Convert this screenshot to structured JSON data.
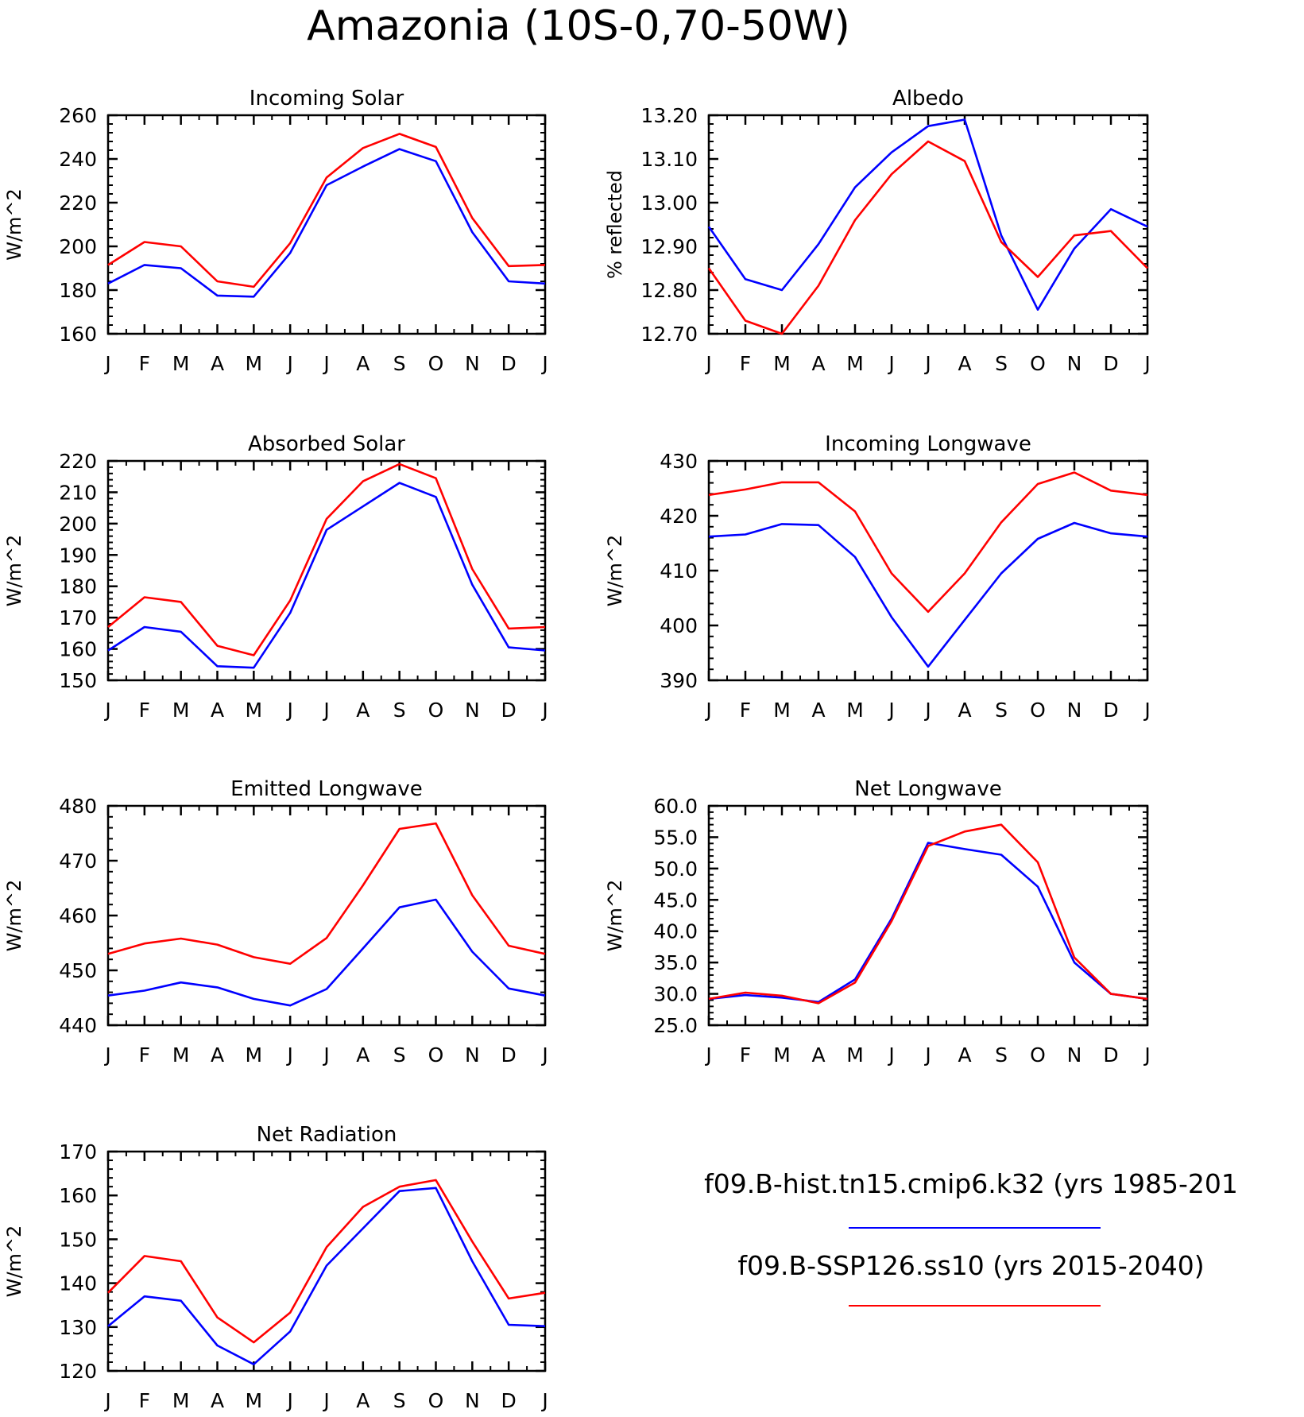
{
  "title": "Amazonia (10S-0,70-50W)",
  "legend": [
    {
      "label": "f09.B-hist.tn15.cmip6.k32 (yrs 1985-201",
      "color": "#0000ff"
    },
    {
      "label": "f09.B-SSP126.ss10 (yrs 2015-2040)",
      "color": "#ff0000"
    }
  ],
  "chart_data": [
    {
      "type": "line",
      "title": "Incoming Solar",
      "ylabel": "W/m^2",
      "ylim": [
        160,
        260
      ],
      "yticks": [
        "160",
        "180",
        "200",
        "220",
        "240",
        "260"
      ],
      "categories": [
        "J",
        "F",
        "M",
        "A",
        "M",
        "J",
        "J",
        "A",
        "S",
        "O",
        "N",
        "D",
        "J"
      ],
      "series": [
        {
          "color": "#0000ff",
          "values": [
            183,
            191.5,
            190,
            177.5,
            177,
            197,
            228,
            236.5,
            244.5,
            239,
            206.5,
            184,
            183
          ]
        },
        {
          "color": "#ff0000",
          "values": [
            191.5,
            202,
            200,
            184,
            181.5,
            201.5,
            231.5,
            245,
            251.5,
            245.5,
            213,
            191,
            191.5
          ]
        }
      ]
    },
    {
      "type": "line",
      "title": "Albedo",
      "ylabel": "% reflected",
      "ylim": [
        12.7,
        13.2
      ],
      "yticks": [
        "12.70",
        "12.80",
        "12.90",
        "13.00",
        "13.10",
        "13.20"
      ],
      "categories": [
        "J",
        "F",
        "M",
        "A",
        "M",
        "J",
        "J",
        "A",
        "S",
        "O",
        "N",
        "D",
        "J"
      ],
      "series": [
        {
          "color": "#0000ff",
          "values": [
            12.945,
            12.825,
            12.8,
            12.905,
            13.035,
            13.115,
            13.175,
            13.19,
            12.925,
            12.755,
            12.895,
            12.985,
            12.945
          ]
        },
        {
          "color": "#ff0000",
          "values": [
            12.85,
            12.73,
            12.7,
            12.81,
            12.96,
            13.065,
            13.14,
            13.095,
            12.91,
            12.83,
            12.925,
            12.935,
            12.85
          ]
        }
      ]
    },
    {
      "type": "line",
      "title": "Absorbed Solar",
      "ylabel": "W/m^2",
      "ylim": [
        150,
        220
      ],
      "yticks": [
        "150",
        "160",
        "170",
        "180",
        "190",
        "200",
        "210",
        "220"
      ],
      "categories": [
        "J",
        "F",
        "M",
        "A",
        "M",
        "J",
        "J",
        "A",
        "S",
        "O",
        "N",
        "D",
        "J"
      ],
      "series": [
        {
          "color": "#0000ff",
          "values": [
            159.5,
            167,
            165.5,
            154.5,
            154,
            171.5,
            198,
            205.5,
            213,
            208.5,
            180.5,
            160.5,
            159.5
          ]
        },
        {
          "color": "#ff0000",
          "values": [
            167,
            176.5,
            175,
            161,
            158,
            175.5,
            201.5,
            213.5,
            219,
            214.5,
            185.5,
            166.5,
            167
          ]
        }
      ]
    },
    {
      "type": "line",
      "title": "Incoming Longwave",
      "ylabel": "W/m^2",
      "ylim": [
        390,
        430
      ],
      "yticks": [
        "390",
        "400",
        "410",
        "420",
        "430"
      ],
      "categories": [
        "J",
        "F",
        "M",
        "A",
        "M",
        "J",
        "J",
        "A",
        "S",
        "O",
        "N",
        "D",
        "J"
      ],
      "series": [
        {
          "color": "#0000ff",
          "values": [
            416.2,
            416.6,
            418.5,
            418.3,
            412.5,
            401.5,
            392.5,
            401,
            409.5,
            415.8,
            418.7,
            416.8,
            416.2
          ]
        },
        {
          "color": "#ff0000",
          "values": [
            423.8,
            424.8,
            426.1,
            426.1,
            420.8,
            409.5,
            402.5,
            409.5,
            418.8,
            425.8,
            427.9,
            424.6,
            423.8
          ]
        }
      ]
    },
    {
      "type": "line",
      "title": "Emitted Longwave",
      "ylabel": "W/m^2",
      "ylim": [
        440,
        480
      ],
      "yticks": [
        "440",
        "450",
        "460",
        "470",
        "480"
      ],
      "categories": [
        "J",
        "F",
        "M",
        "A",
        "M",
        "J",
        "J",
        "A",
        "S",
        "O",
        "N",
        "D",
        "J"
      ],
      "series": [
        {
          "color": "#0000ff",
          "values": [
            445.4,
            446.3,
            447.8,
            446.9,
            444.8,
            443.6,
            446.6,
            454,
            461.5,
            462.9,
            453.4,
            446.7,
            445.4
          ]
        },
        {
          "color": "#ff0000",
          "values": [
            453,
            454.9,
            455.8,
            454.7,
            452.4,
            451.2,
            455.9,
            465.5,
            475.8,
            476.8,
            463.7,
            454.5,
            453
          ]
        }
      ]
    },
    {
      "type": "line",
      "title": "Net Longwave",
      "ylabel": "W/m^2",
      "ylim": [
        25,
        60
      ],
      "yticks": [
        "25.0",
        "30.0",
        "35.0",
        "40.0",
        "45.0",
        "50.0",
        "55.0",
        "60.0"
      ],
      "categories": [
        "J",
        "F",
        "M",
        "A",
        "M",
        "J",
        "J",
        "A",
        "S",
        "O",
        "N",
        "D",
        "J"
      ],
      "series": [
        {
          "color": "#0000ff",
          "values": [
            29.2,
            29.8,
            29.4,
            28.7,
            32.3,
            42,
            54.1,
            53.1,
            52.2,
            47.1,
            35,
            30,
            29.2
          ]
        },
        {
          "color": "#ff0000",
          "values": [
            29.2,
            30.2,
            29.7,
            28.5,
            31.8,
            41.6,
            53.6,
            55.9,
            57,
            51,
            35.8,
            30,
            29.2
          ]
        }
      ]
    },
    {
      "type": "line",
      "title": "Net Radiation",
      "ylabel": "W/m^2",
      "ylim": [
        120,
        170
      ],
      "yticks": [
        "120",
        "130",
        "140",
        "150",
        "160",
        "170"
      ],
      "categories": [
        "J",
        "F",
        "M",
        "A",
        "M",
        "J",
        "J",
        "A",
        "S",
        "O",
        "N",
        "D",
        "J"
      ],
      "series": [
        {
          "color": "#0000ff",
          "values": [
            130.2,
            137,
            136,
            125.8,
            121.5,
            129,
            144,
            152.5,
            161,
            161.7,
            145,
            130.5,
            130.2
          ]
        },
        {
          "color": "#ff0000",
          "values": [
            137.8,
            146.2,
            145,
            132.2,
            126.5,
            133.3,
            148.2,
            157.4,
            162,
            163.5,
            149.5,
            136.5,
            137.8
          ]
        }
      ]
    }
  ]
}
